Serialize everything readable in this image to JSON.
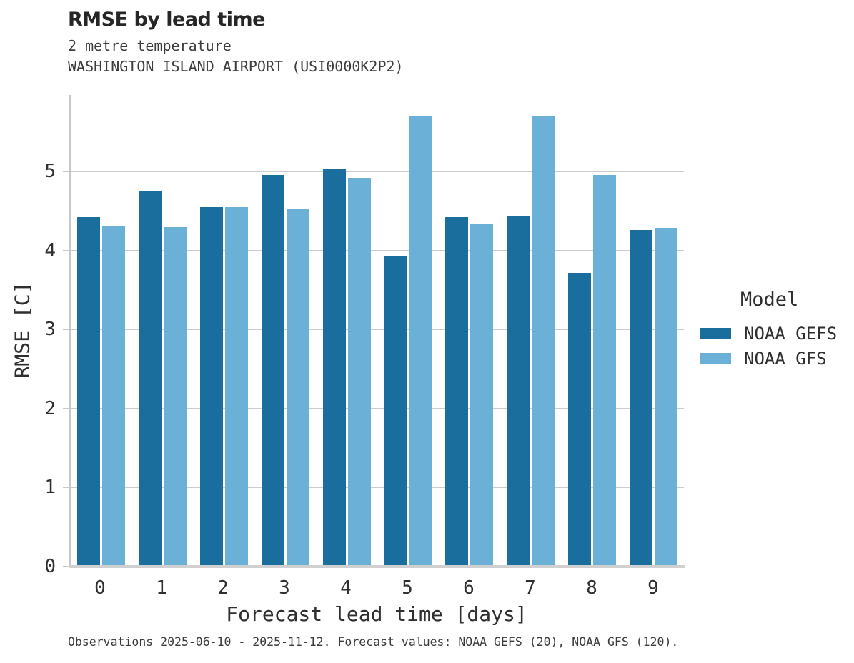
{
  "header": {
    "title": "RMSE by lead time"
  },
  "chart_data": {
    "type": "bar",
    "title": "RMSE by lead time",
    "subtitle_lines": [
      "2 metre temperature",
      "WASHINGTON ISLAND AIRPORT (USI0000K2P2)"
    ],
    "categories": [
      "0",
      "1",
      "2",
      "3",
      "4",
      "5",
      "6",
      "7",
      "8",
      "9"
    ],
    "series": [
      {
        "name": "NOAA GEFS",
        "color": "#1a6e9d",
        "values": [
          4.42,
          4.75,
          4.55,
          4.96,
          5.04,
          3.93,
          4.42,
          4.43,
          3.72,
          4.26
        ]
      },
      {
        "name": "NOAA GFS",
        "color": "#6bb0d6",
        "values": [
          4.31,
          4.3,
          4.55,
          4.53,
          4.92,
          5.7,
          4.34,
          5.7,
          4.96,
          4.29
        ]
      }
    ],
    "xlabel": "Forecast lead time [days]",
    "ylabel": "RMSE [C]",
    "ylim": [
      0,
      5.97
    ],
    "yticks": [
      0,
      1,
      2,
      3,
      4,
      5
    ],
    "grid": true,
    "legend_title": "Model",
    "legend_position": "right"
  },
  "footer": {
    "caption": "Observations 2025-06-10 - 2025-11-12. Forecast values: NOAA GEFS (20), NOAA GFS (120)."
  },
  "colors": {
    "grid": "#cccccc",
    "spine": "#c8c8c8",
    "baseline": "#d0d0d0",
    "title_text": "#262626",
    "tick_text": "#303030"
  }
}
